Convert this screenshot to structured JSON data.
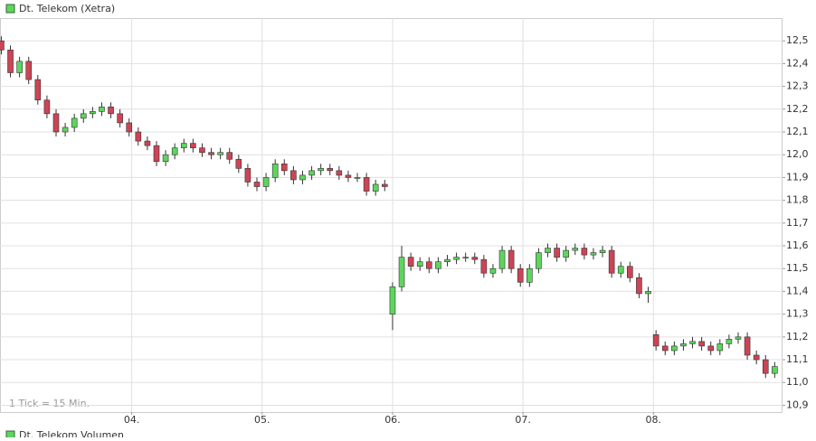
{
  "chart_data": {
    "type": "candlestick",
    "title": "Dt. Telekom (Xetra)",
    "annotation": "1 Tick = 15 Min.",
    "volume_title": "Dt. Telekom Volumen",
    "x": [
      3.0,
      3.07,
      3.14,
      3.21,
      3.28,
      3.35,
      3.42,
      3.49,
      3.56,
      3.63,
      3.7,
      3.77,
      3.84,
      3.91,
      3.98,
      4.05,
      4.12,
      4.19,
      4.26,
      4.33,
      4.4,
      4.47,
      4.54,
      4.61,
      4.68,
      4.75,
      4.82,
      4.89,
      4.96,
      5.03,
      5.1,
      5.17,
      5.24,
      5.31,
      5.38,
      5.45,
      5.52,
      5.59,
      5.66,
      5.73,
      5.8,
      5.87,
      5.94,
      6.0,
      6.07,
      6.14,
      6.21,
      6.28,
      6.35,
      6.42,
      6.49,
      6.56,
      6.63,
      6.7,
      6.77,
      6.84,
      6.91,
      6.98,
      7.05,
      7.12,
      7.19,
      7.26,
      7.33,
      7.4,
      7.47,
      7.54,
      7.61,
      7.68,
      7.75,
      7.82,
      7.89,
      7.96,
      8.02,
      8.09,
      8.16,
      8.23,
      8.3,
      8.37,
      8.44,
      8.51,
      8.58,
      8.65,
      8.72,
      8.79,
      8.86,
      8.93
    ],
    "open": [
      12.5,
      12.46,
      12.36,
      12.41,
      12.33,
      12.24,
      12.18,
      12.1,
      12.12,
      12.16,
      12.18,
      12.19,
      12.21,
      12.18,
      12.14,
      12.1,
      12.06,
      12.04,
      11.97,
      12.0,
      12.03,
      12.05,
      12.03,
      12.01,
      12.0,
      12.01,
      11.98,
      11.94,
      11.88,
      11.86,
      11.9,
      11.96,
      11.93,
      11.89,
      11.91,
      11.93,
      11.94,
      11.93,
      11.91,
      11.9,
      11.9,
      11.84,
      11.87,
      11.3,
      11.42,
      11.55,
      11.51,
      11.53,
      11.5,
      11.53,
      11.54,
      11.55,
      11.55,
      11.54,
      11.48,
      11.5,
      11.58,
      11.5,
      11.44,
      11.5,
      11.57,
      11.59,
      11.55,
      11.58,
      11.59,
      11.56,
      11.57,
      11.58,
      11.48,
      11.51,
      11.46,
      11.39,
      11.21,
      11.16,
      11.14,
      11.16,
      11.17,
      11.18,
      11.16,
      11.14,
      11.17,
      11.19,
      11.2,
      11.12,
      11.1,
      11.04
    ],
    "high": [
      12.52,
      12.48,
      12.43,
      12.43,
      12.35,
      12.26,
      12.2,
      12.14,
      12.18,
      12.2,
      12.21,
      12.23,
      12.23,
      12.2,
      12.16,
      12.12,
      12.08,
      12.06,
      12.02,
      12.05,
      12.07,
      12.07,
      12.05,
      12.03,
      12.03,
      12.03,
      12.0,
      11.96,
      11.9,
      11.92,
      11.98,
      11.98,
      11.95,
      11.93,
      11.95,
      11.96,
      11.96,
      11.95,
      11.93,
      11.92,
      11.92,
      11.89,
      11.89,
      11.44,
      11.6,
      11.57,
      11.55,
      11.55,
      11.55,
      11.56,
      11.57,
      11.57,
      11.57,
      11.56,
      11.52,
      11.6,
      11.6,
      11.52,
      11.52,
      11.59,
      11.61,
      11.61,
      11.6,
      11.61,
      11.61,
      11.59,
      11.6,
      11.6,
      11.53,
      11.53,
      11.48,
      11.42,
      11.23,
      11.18,
      11.18,
      11.19,
      11.2,
      11.2,
      11.18,
      11.19,
      11.21,
      11.22,
      11.22,
      11.14,
      11.12,
      11.09
    ],
    "low": [
      12.44,
      12.34,
      12.34,
      12.31,
      12.22,
      12.16,
      12.08,
      12.08,
      12.1,
      12.14,
      12.16,
      12.17,
      12.16,
      12.12,
      12.08,
      12.04,
      12.02,
      11.95,
      11.95,
      11.98,
      12.01,
      12.01,
      11.99,
      11.98,
      11.98,
      11.96,
      11.92,
      11.86,
      11.84,
      11.84,
      11.88,
      11.91,
      11.87,
      11.87,
      11.89,
      11.91,
      11.91,
      11.89,
      11.88,
      11.88,
      11.82,
      11.82,
      11.84,
      11.23,
      11.4,
      11.49,
      11.49,
      11.48,
      11.48,
      11.51,
      11.52,
      11.53,
      11.52,
      11.46,
      11.46,
      11.48,
      11.48,
      11.42,
      11.42,
      11.48,
      11.55,
      11.53,
      11.53,
      11.56,
      11.54,
      11.54,
      11.55,
      11.46,
      11.46,
      11.44,
      11.37,
      11.35,
      11.14,
      11.12,
      11.12,
      11.14,
      11.15,
      11.14,
      11.12,
      11.12,
      11.15,
      11.17,
      11.1,
      11.08,
      11.02,
      11.02
    ],
    "close": [
      12.46,
      12.36,
      12.41,
      12.33,
      12.24,
      12.18,
      12.1,
      12.12,
      12.16,
      12.18,
      12.19,
      12.21,
      12.18,
      12.14,
      12.1,
      12.06,
      12.04,
      11.97,
      12.0,
      12.03,
      12.05,
      12.03,
      12.01,
      12.0,
      12.01,
      11.98,
      11.94,
      11.88,
      11.86,
      11.9,
      11.96,
      11.93,
      11.89,
      11.91,
      11.93,
      11.94,
      11.93,
      11.91,
      11.9,
      11.9,
      11.84,
      11.87,
      11.86,
      11.42,
      11.55,
      11.51,
      11.53,
      11.5,
      11.53,
      11.54,
      11.55,
      11.55,
      11.54,
      11.48,
      11.5,
      11.58,
      11.5,
      11.44,
      11.5,
      11.57,
      11.59,
      11.55,
      11.58,
      11.59,
      11.56,
      11.57,
      11.58,
      11.48,
      11.51,
      11.46,
      11.39,
      11.4,
      11.16,
      11.14,
      11.16,
      11.17,
      11.18,
      11.16,
      11.14,
      11.17,
      11.19,
      11.2,
      11.12,
      11.1,
      11.04,
      11.07
    ],
    "xlim": [
      2.99,
      8.99
    ],
    "xticks": [
      {
        "value": 4,
        "label": "04."
      },
      {
        "value": 5,
        "label": "05."
      },
      {
        "value": 6,
        "label": "06."
      },
      {
        "value": 7,
        "label": "07."
      },
      {
        "value": 8,
        "label": "08."
      }
    ],
    "ylim": [
      10.87,
      12.6
    ],
    "yticks": [
      {
        "value": 10.9,
        "label": "10,9"
      },
      {
        "value": 11.0,
        "label": "11,0"
      },
      {
        "value": 11.1,
        "label": "11,1"
      },
      {
        "value": 11.2,
        "label": "11,2"
      },
      {
        "value": 11.3,
        "label": "11,3"
      },
      {
        "value": 11.4,
        "label": "11,4"
      },
      {
        "value": 11.5,
        "label": "11,5"
      },
      {
        "value": 11.6,
        "label": "11,6"
      },
      {
        "value": 11.7,
        "label": "11,7"
      },
      {
        "value": 11.8,
        "label": "11,8"
      },
      {
        "value": 11.9,
        "label": "11,9"
      },
      {
        "value": 12.0,
        "label": "12,0"
      },
      {
        "value": 12.1,
        "label": "12,1"
      },
      {
        "value": 12.2,
        "label": "12,2"
      },
      {
        "value": 12.3,
        "label": "12,3"
      },
      {
        "value": 12.4,
        "label": "12,4"
      },
      {
        "value": 12.5,
        "label": "12,5"
      }
    ],
    "grid": true,
    "up_color": "#5cd65c",
    "down_color": "#cc4455"
  }
}
